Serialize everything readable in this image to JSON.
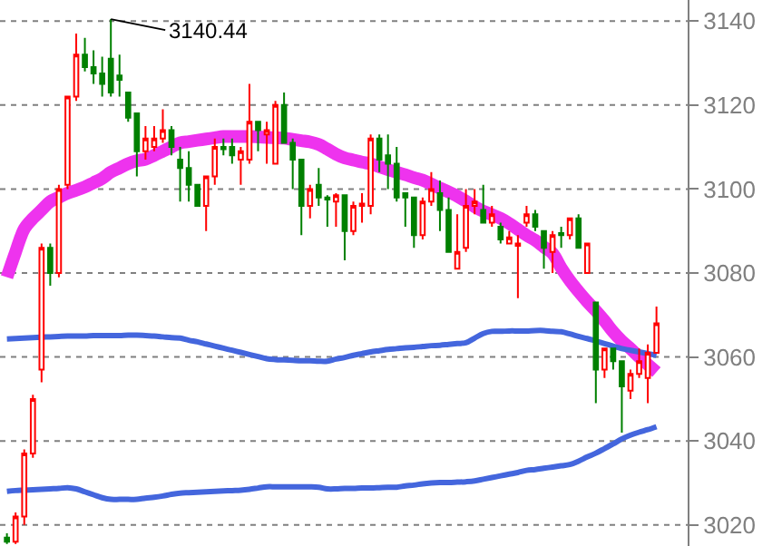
{
  "chart_data": {
    "type": "candlestick",
    "categories": [
      null,
      null,
      null,
      null,
      null,
      null,
      null,
      null,
      null,
      null,
      null,
      null,
      null,
      null,
      null,
      null,
      null,
      null,
      null,
      null,
      null,
      null,
      null,
      null,
      null,
      null,
      null,
      null,
      null,
      null,
      null,
      null,
      null,
      null,
      null,
      null,
      null,
      null,
      null,
      null,
      null,
      null,
      null,
      null,
      null,
      null,
      null,
      null,
      null,
      null,
      null,
      null,
      null,
      null,
      null,
      null,
      null,
      null,
      null,
      null,
      null,
      null,
      null,
      null,
      null,
      null,
      null,
      null,
      null,
      null,
      null,
      null,
      null,
      null,
      null,
      null
    ],
    "ohlc": [
      [
        3017,
        3018,
        3015.5,
        3016
      ],
      [
        3016,
        3023,
        3015.5,
        3022
      ],
      [
        3022,
        3038,
        3020,
        3037
      ],
      [
        3037,
        3051,
        3036,
        3050
      ],
      [
        3057,
        3087,
        3054,
        3086
      ],
      [
        3086,
        3087,
        3077,
        3080
      ],
      [
        3080,
        3101,
        3079,
        3100
      ],
      [
        3101,
        3122,
        3100,
        3122
      ],
      [
        3122,
        3137,
        3121,
        3132
      ],
      [
        3132,
        3136,
        3128,
        3129
      ],
      [
        3129,
        3133,
        3125,
        3127.5
      ],
      [
        3127.5,
        3131.5,
        3122,
        3125
      ],
      [
        3131,
        3140.44,
        3122,
        3123
      ],
      [
        3127,
        3132,
        3122,
        3126
      ],
      [
        3123,
        3123,
        3116,
        3117
      ],
      [
        3118,
        3118,
        3103,
        3109
      ],
      [
        3109,
        3115,
        3107,
        3112
      ],
      [
        3110,
        3115,
        3109,
        3112
      ],
      [
        3112,
        3119,
        3111,
        3114
      ],
      [
        3114,
        3115,
        3108,
        3110
      ],
      [
        3107,
        3110,
        3097,
        3105
      ],
      [
        3105,
        3109,
        3097,
        3101
      ],
      [
        3101,
        3101,
        3096,
        3096
      ],
      [
        3096,
        3103,
        3090,
        3103
      ],
      [
        3103,
        3112,
        3101,
        3110
      ],
      [
        3110,
        3112,
        3108,
        3109.5
      ],
      [
        3110,
        3112,
        3106,
        3108
      ],
      [
        3107,
        3110,
        3101,
        3109
      ],
      [
        3107,
        3125,
        3106,
        3116
      ],
      [
        3116,
        3116,
        3109,
        3114
      ],
      [
        3113,
        3116,
        3106,
        3114
      ],
      [
        3106,
        3121,
        3106,
        3120
      ],
      [
        3120,
        3123,
        3111,
        3111
      ],
      [
        3111,
        3112,
        3100,
        3107
      ],
      [
        3107,
        3107,
        3089,
        3096
      ],
      [
        3096,
        3101,
        3093,
        3100
      ],
      [
        3101,
        3105,
        3096,
        3098
      ],
      [
        3098,
        3098.5,
        3091,
        3097.5
      ],
      [
        3097,
        3099,
        3091,
        3098.5
      ],
      [
        3098.5,
        3098.5,
        3083,
        3090
      ],
      [
        3090,
        3097,
        3089,
        3096
      ],
      [
        3096,
        3099,
        3092,
        3096.5
      ],
      [
        3096,
        3113,
        3094,
        3112
      ],
      [
        3112,
        3113,
        3104,
        3107
      ],
      [
        3108,
        3113,
        3100,
        3106
      ],
      [
        3106,
        3110,
        3097,
        3098
      ],
      [
        3099,
        3099,
        3091,
        3098
      ],
      [
        3098,
        3098,
        3086,
        3089
      ],
      [
        3089,
        3098,
        3088,
        3097
      ],
      [
        3097,
        3104,
        3096,
        3100
      ],
      [
        3099,
        3102,
        3090,
        3095
      ],
      [
        3095,
        3098,
        3085,
        3085
      ],
      [
        3081,
        3094,
        3081,
        3085
      ],
      [
        3086,
        3100,
        3085,
        3096
      ],
      [
        3096,
        3100,
        3094,
        3097
      ],
      [
        3095,
        3101,
        3092,
        3092
      ],
      [
        3092,
        3096,
        3091,
        3094
      ],
      [
        3091,
        3092,
        3087,
        3088
      ],
      [
        3087,
        3090,
        3087,
        3088.5
      ],
      [
        3086.5,
        3089,
        3074,
        3087
      ],
      [
        3092,
        3096,
        3091,
        3094
      ],
      [
        3094,
        3095,
        3090,
        3091
      ],
      [
        3090,
        3090,
        3081,
        3086
      ],
      [
        3085,
        3090,
        3080,
        3089
      ],
      [
        3089.5,
        3091,
        3086,
        3089
      ],
      [
        3089,
        3093,
        3088,
        3093
      ],
      [
        3093,
        3094,
        3086,
        3086
      ],
      [
        3080,
        3087,
        3080,
        3087
      ],
      [
        3073,
        3073,
        3049,
        3057
      ],
      [
        3057,
        3062,
        3055,
        3062
      ],
      [
        3062,
        3062,
        3057,
        3059
      ],
      [
        3059,
        3059,
        3042,
        3053
      ],
      [
        3052,
        3057,
        3050,
        3056
      ],
      [
        3056,
        3062,
        3055,
        3059
      ],
      [
        3055,
        3063,
        3049,
        3061
      ],
      [
        3061,
        3072,
        3061,
        3068
      ]
    ],
    "colors": [
      "#008000",
      "#ff0000",
      "#ff0000",
      "#ff0000",
      "#ff0000",
      "#008000",
      "#ff0000",
      "#ff0000",
      "#ff0000",
      "#008000",
      "#008000",
      "#008000",
      "#008000",
      "#008000",
      "#008000",
      "#008000",
      "#ff0000",
      "#ff0000",
      "#ff0000",
      "#008000",
      "#008000",
      "#008000",
      "#008000",
      "#ff0000",
      "#ff0000",
      "#008000",
      "#008000",
      "#ff0000",
      "#ff0000",
      "#008000",
      "#ff0000",
      "#ff0000",
      "#008000",
      "#008000",
      "#008000",
      "#ff0000",
      "#008000",
      "#008000",
      "#ff0000",
      "#008000",
      "#ff0000",
      "#ff0000",
      "#ff0000",
      "#008000",
      "#008000",
      "#008000",
      "#008000",
      "#008000",
      "#ff0000",
      "#ff0000",
      "#008000",
      "#008000",
      "#ff0000",
      "#ff0000",
      "#ff0000",
      "#008000",
      "#ff0000",
      "#008000",
      "#ff0000",
      "#ff0000",
      "#ff0000",
      "#008000",
      "#008000",
      "#ff0000",
      "#008000",
      "#ff0000",
      "#008000",
      "#ff0000",
      "#008000",
      "#ff0000",
      "#008000",
      "#008000",
      "#ff0000",
      "#ff0000",
      "#ff0000",
      "#ff0000"
    ],
    "series": [
      {
        "type": "line",
        "color": "#ee33ee",
        "values": [
          3079,
          3085,
          3090.5,
          3093,
          3095,
          3097,
          3098,
          3099,
          3099.7,
          3100.5,
          3101.5,
          3102.5,
          3104,
          3105,
          3106,
          3106.7,
          3107.1,
          3108,
          3109,
          3110,
          3111,
          3111.3,
          3111.6,
          3111.9,
          3112.2,
          3112.5,
          3112.5,
          3112.5,
          3112.5,
          3112.4,
          3112.3,
          3112.2,
          3112.1,
          3111.8,
          3111.5,
          3111.2,
          3110.6,
          3109.5,
          3108.3,
          3107.4,
          3106.9,
          3106.4,
          3106,
          3105.3,
          3104.6,
          3104,
          3103.4,
          3102.7,
          3102.1,
          3101.2,
          3100.2,
          3099.3,
          3098.3,
          3097.1,
          3095.8,
          3094.7,
          3093.9,
          3093,
          3091.8,
          3090.4,
          3089,
          3087.8,
          3086.2,
          3084.7,
          3081.2,
          3078.2,
          3075.6,
          3073.2,
          3071,
          3068.6,
          3066,
          3063.8,
          3062,
          3060,
          3058.2,
          3056.4
        ]
      },
      {
        "type": "line",
        "color": "#4466dd",
        "values": [
          3064.3,
          3064.4,
          3064.5,
          3064.6,
          3064.7,
          3064.8,
          3064.9,
          3065,
          3065,
          3065,
          3065.1,
          3065.1,
          3065.1,
          3065.1,
          3065.2,
          3065.2,
          3065.1,
          3065,
          3064.8,
          3064.6,
          3064.5,
          3064,
          3063.6,
          3063.1,
          3062.6,
          3062.1,
          3061.6,
          3061.1,
          3060.6,
          3060.1,
          3059.6,
          3059.4,
          3059.3,
          3059.2,
          3059.1,
          3059.1,
          3059,
          3059,
          3059.5,
          3059.9,
          3060.4,
          3060.8,
          3061.2,
          3061.5,
          3061.8,
          3062,
          3062.2,
          3062.3,
          3062.5,
          3062.7,
          3062.8,
          3063,
          3063.2,
          3063.4,
          3064.5,
          3065.6,
          3066.1,
          3066.1,
          3066.2,
          3066.2,
          3066.2,
          3066.3,
          3066.3,
          3066.1,
          3066,
          3065.5,
          3064.9,
          3064.4,
          3063.8,
          3063.2,
          3062.6,
          3062,
          3061.6,
          3061.2,
          3060.8,
          3060.4
        ]
      },
      {
        "type": "line",
        "color": "#4466dd",
        "values": [
          3028,
          3028.2,
          3028.3,
          3028.4,
          3028.5,
          3028.6,
          3028.7,
          3028.9,
          3028.6,
          3027.9,
          3027.2,
          3026.5,
          3026.1,
          3026.1,
          3026.1,
          3026.1,
          3026.4,
          3026.6,
          3026.9,
          3027.3,
          3027.6,
          3027.7,
          3027.8,
          3027.9,
          3028,
          3028.1,
          3028.2,
          3028.3,
          3028.5,
          3028.8,
          3029.1,
          3029.1,
          3029.1,
          3029.1,
          3029.1,
          3029.1,
          3029,
          3028.6,
          3028.6,
          3028.7,
          3028.7,
          3028.8,
          3028.8,
          3028.9,
          3029,
          3029,
          3029.3,
          3029.5,
          3029.8,
          3030,
          3030.1,
          3030.1,
          3030.2,
          3030.3,
          3030.5,
          3030.9,
          3031.3,
          3031.7,
          3032.1,
          3032.5,
          3033,
          3033.2,
          3033.5,
          3033.8,
          3034.1,
          3034.4,
          3035.2,
          3036.2,
          3037.1,
          3038.2,
          3039.3,
          3040.5,
          3041.4,
          3042.1,
          3042.7,
          3043.4
        ]
      }
    ],
    "ylim": [
      3015,
      3145
    ],
    "yticks": [
      3020,
      3040,
      3060,
      3080,
      3100,
      3120,
      3140
    ],
    "grid": "y",
    "tick_labels": "y",
    "annotations": [
      "3140.44"
    ]
  }
}
